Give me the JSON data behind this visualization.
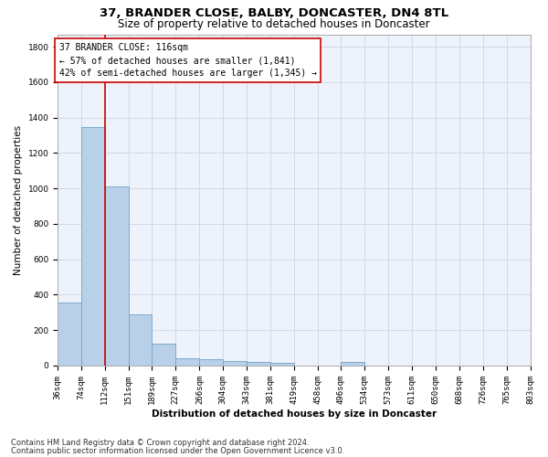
{
  "title1": "37, BRANDER CLOSE, BALBY, DONCASTER, DN4 8TL",
  "title2": "Size of property relative to detached houses in Doncaster",
  "xlabel": "Distribution of detached houses by size in Doncaster",
  "ylabel": "Number of detached properties",
  "footer1": "Contains HM Land Registry data © Crown copyright and database right 2024.",
  "footer2": "Contains public sector information licensed under the Open Government Licence v3.0.",
  "annotation_title": "37 BRANDER CLOSE: 116sqm",
  "annotation_line1": "← 57% of detached houses are smaller (1,841)",
  "annotation_line2": "42% of semi-detached houses are larger (1,345) →",
  "bar_edges": [
    36,
    74,
    112,
    151,
    189,
    227,
    266,
    304,
    343,
    381,
    419,
    458,
    496,
    534,
    573,
    611,
    650,
    688,
    726,
    765,
    803
  ],
  "bar_heights": [
    355,
    1345,
    1010,
    290,
    125,
    42,
    35,
    25,
    18,
    15,
    0,
    0,
    18,
    0,
    0,
    0,
    0,
    0,
    0,
    0
  ],
  "bar_color": "#b8d0e8",
  "bar_edge_color": "#7aaad0",
  "red_line_x": 112,
  "ylim": [
    0,
    1870
  ],
  "yticks": [
    0,
    200,
    400,
    600,
    800,
    1000,
    1200,
    1400,
    1600,
    1800
  ],
  "bg_color": "#eef2fa",
  "grid_color": "#d0d4e8",
  "annotation_box_color": "#ffffff",
  "annotation_box_edge": "#cc0000",
  "red_line_color": "#cc0000",
  "title1_fontsize": 9.5,
  "title2_fontsize": 8.5,
  "axis_label_fontsize": 7.5,
  "ylabel_fontsize": 7.5,
  "tick_fontsize": 6.5,
  "annotation_fontsize": 7.0,
  "footer_fontsize": 6.0
}
